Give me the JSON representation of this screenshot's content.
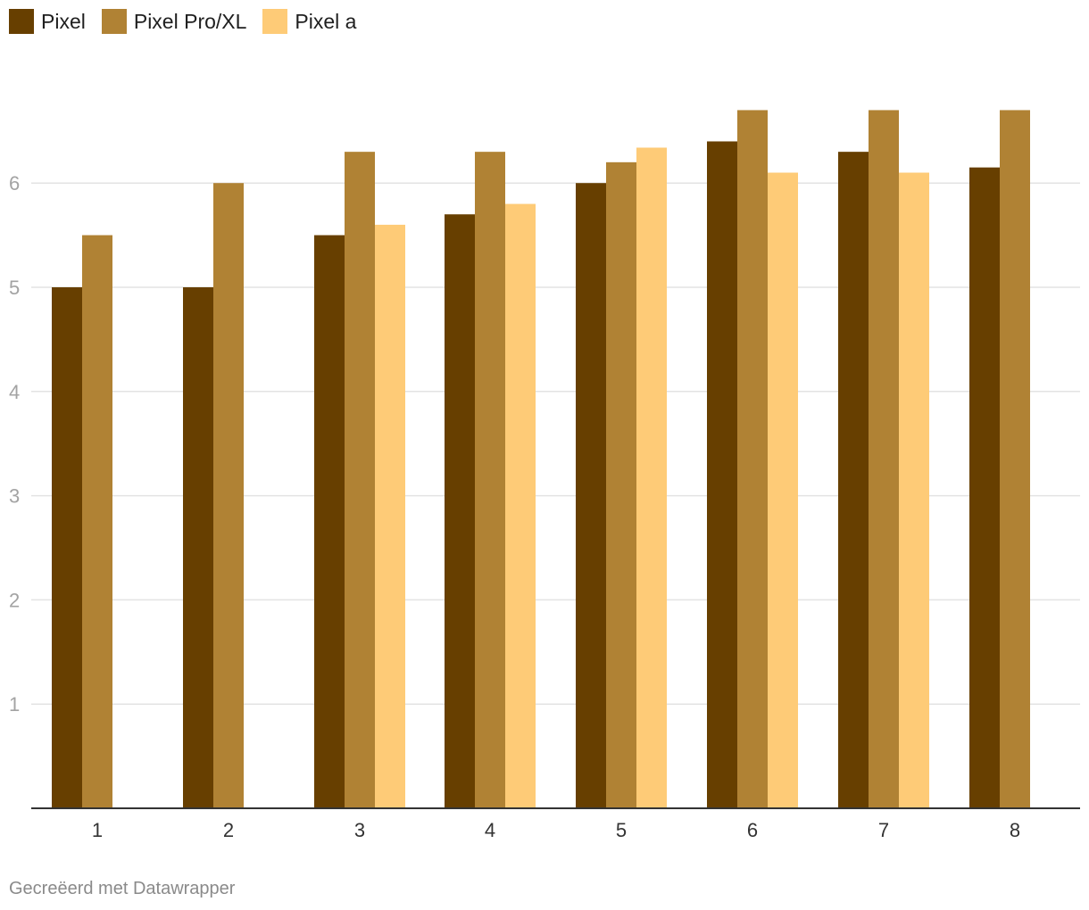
{
  "chart_data": {
    "type": "bar",
    "categories": [
      "1",
      "2",
      "3",
      "4",
      "5",
      "6",
      "7",
      "8"
    ],
    "series": [
      {
        "name": "Pixel",
        "color": "#673f00",
        "values": [
          5.0,
          5.0,
          5.5,
          5.7,
          6.0,
          6.4,
          6.3,
          6.15
        ]
      },
      {
        "name": "Pixel Pro/XL",
        "color": "#b08234",
        "values": [
          5.5,
          6.0,
          6.3,
          6.3,
          6.2,
          6.7,
          6.7,
          6.7
        ]
      },
      {
        "name": "Pixel a",
        "color": "#fecb77",
        "values": [
          null,
          null,
          5.6,
          5.8,
          6.34,
          6.1,
          6.1,
          null
        ]
      }
    ],
    "y_ticks": [
      "1",
      "2",
      "3",
      "4",
      "5",
      "6"
    ],
    "ylim": [
      0,
      6.9
    ],
    "grid": true,
    "legend_position": "top-left"
  },
  "credit": "Gecreëerd met Datawrapper"
}
